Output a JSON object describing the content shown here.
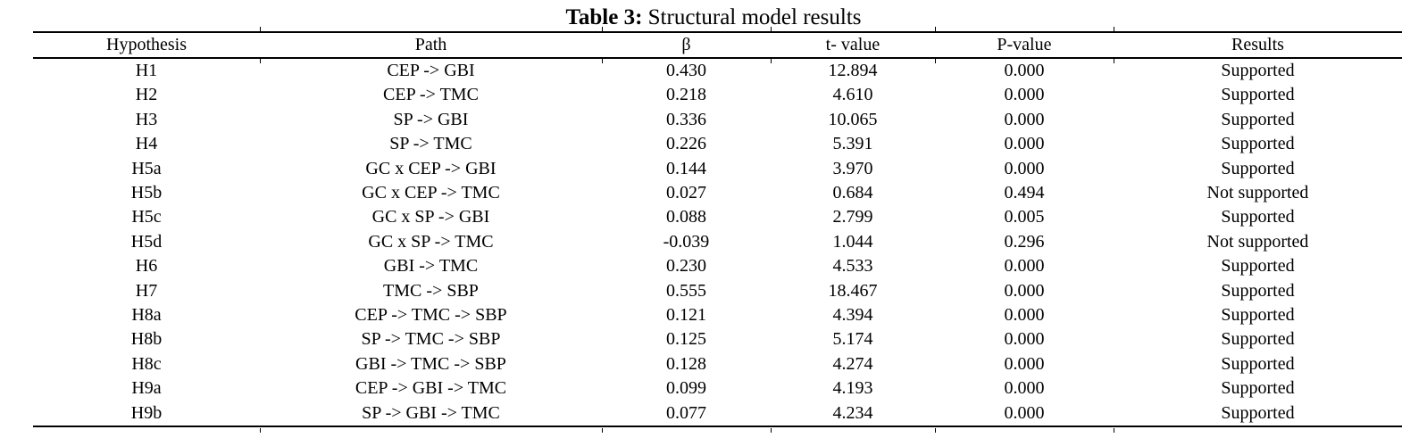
{
  "table": {
    "title_bold": "Table 3:",
    "title_rest": " Structural model results",
    "columns": [
      "Hypothesis",
      "Path",
      "β",
      "t- value",
      "P-value",
      "Results"
    ],
    "rows": [
      [
        "H1",
        "CEP -> GBI",
        "0.430",
        "12.894",
        "0.000",
        "Supported"
      ],
      [
        "H2",
        "CEP -> TMC",
        "0.218",
        "4.610",
        "0.000",
        "Supported"
      ],
      [
        "H3",
        "SP -> GBI",
        "0.336",
        "10.065",
        "0.000",
        "Supported"
      ],
      [
        "H4",
        "SP -> TMC",
        "0.226",
        "5.391",
        "0.000",
        "Supported"
      ],
      [
        "H5a",
        "GC x CEP -> GBI",
        "0.144",
        "3.970",
        "0.000",
        "Supported"
      ],
      [
        "H5b",
        "GC x CEP -> TMC",
        "0.027",
        "0.684",
        "0.494",
        "Not supported"
      ],
      [
        "H5c",
        "GC x SP -> GBI",
        "0.088",
        "2.799",
        "0.005",
        "Supported"
      ],
      [
        "H5d",
        "GC x SP -> TMC",
        "-0.039",
        "1.044",
        "0.296",
        "Not supported"
      ],
      [
        "H6",
        "GBI -> TMC",
        "0.230",
        "4.533",
        "0.000",
        "Supported"
      ],
      [
        "H7",
        "TMC -> SBP",
        "0.555",
        "18.467",
        "0.000",
        "Supported"
      ],
      [
        "H8a",
        "CEP -> TMC -> SBP",
        "0.121",
        "4.394",
        "0.000",
        "Supported"
      ],
      [
        "H8b",
        "SP -> TMC -> SBP",
        "0.125",
        "5.174",
        "0.000",
        "Supported"
      ],
      [
        "H8c",
        "GBI -> TMC -> SBP",
        "0.128",
        "4.274",
        "0.000",
        "Supported"
      ],
      [
        "H9a",
        "CEP -> GBI -> TMC",
        "0.099",
        "4.193",
        "0.000",
        "Supported"
      ],
      [
        "H9b",
        "SP -> GBI -> TMC",
        "0.077",
        "4.234",
        "0.000",
        "Supported"
      ]
    ]
  }
}
